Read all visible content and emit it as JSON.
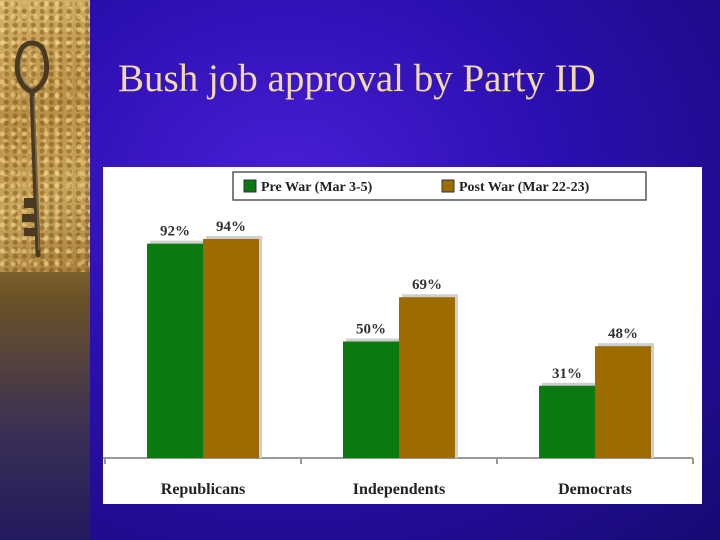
{
  "slide": {
    "title": "Bush job approval by Party ID"
  },
  "chart_data": {
    "type": "bar",
    "title": "",
    "xlabel": "",
    "ylabel": "",
    "ylim": [
      0,
      100
    ],
    "grid": false,
    "legend_position": "top-right",
    "categories": [
      "Republicans",
      "Independents",
      "Democrats"
    ],
    "series": [
      {
        "name": "Pre War (Mar 3-5)",
        "values": [
          92,
          50,
          31
        ],
        "labels": [
          "92%",
          "50%",
          "31%"
        ],
        "color": "#0a7a10"
      },
      {
        "name": "Post War (Mar 22-23)",
        "values": [
          94,
          69,
          48
        ],
        "labels": [
          "94%",
          "69%",
          "48%"
        ],
        "color": "#9c6c00"
      }
    ]
  }
}
